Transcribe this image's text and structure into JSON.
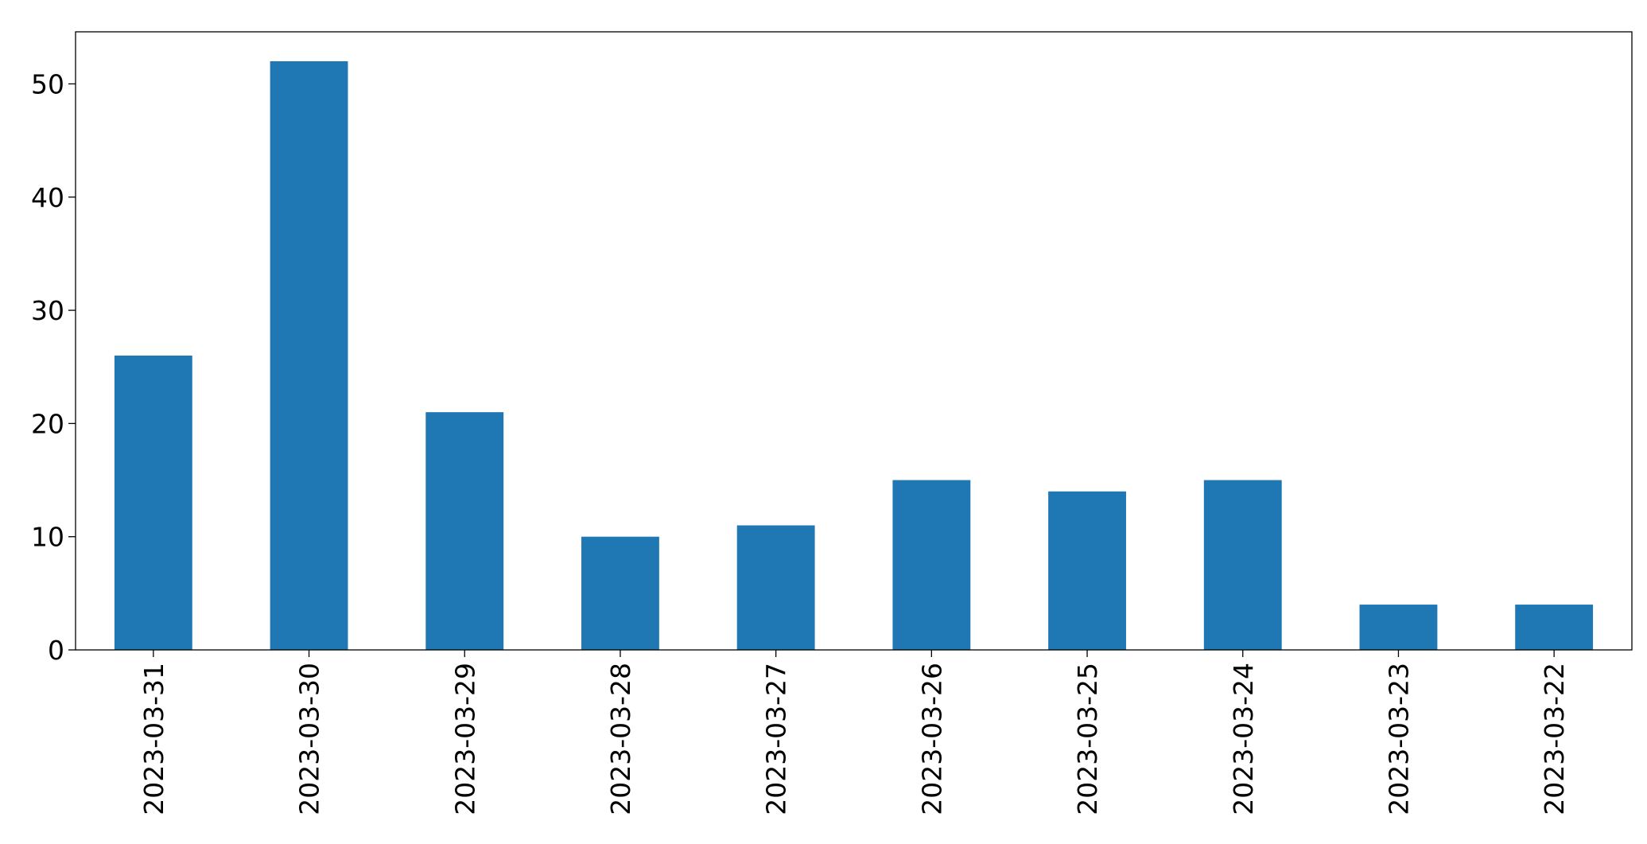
{
  "chart_data": {
    "type": "bar",
    "categories": [
      "2023-03-31",
      "2023-03-30",
      "2023-03-29",
      "2023-03-28",
      "2023-03-27",
      "2023-03-26",
      "2023-03-25",
      "2023-03-24",
      "2023-03-23",
      "2023-03-22"
    ],
    "values": [
      26,
      52,
      21,
      10,
      11,
      15,
      14,
      15,
      4,
      4
    ],
    "color": "#1f77b4",
    "ylim": [
      0,
      54.6
    ],
    "yticks": [
      0,
      10,
      20,
      30,
      40,
      50
    ],
    "grid": false
  }
}
